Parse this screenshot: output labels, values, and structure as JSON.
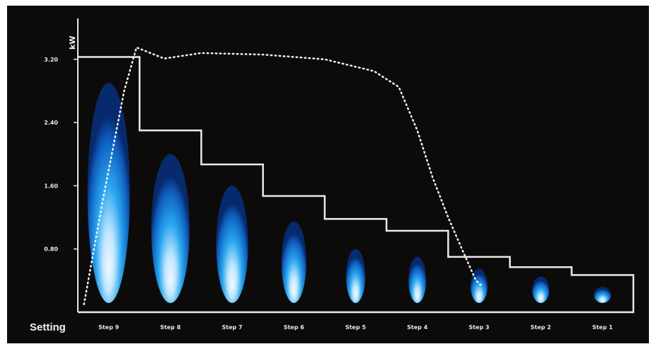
{
  "chart_data": {
    "type": "step-line",
    "title": "",
    "ylabel": "kW",
    "xlabel": "Setting",
    "ylim": [
      0,
      3.7
    ],
    "yticks": [
      {
        "value": 0.8,
        "label": "0.80"
      },
      {
        "value": 1.6,
        "label": "1.60"
      },
      {
        "value": 2.4,
        "label": "2.40"
      },
      {
        "value": 3.2,
        "label": "3.20"
      }
    ],
    "categories": [
      "Step 9",
      "Step 8",
      "Step 7",
      "Step 6",
      "Step 5",
      "Step 4",
      "Step 3",
      "Step 2",
      "Step 1"
    ],
    "series": [
      {
        "style": "solid-step",
        "values": [
          3.23,
          2.3,
          1.87,
          1.47,
          1.18,
          1.03,
          0.7,
          0.57,
          0.47
        ]
      },
      {
        "style": "dotted",
        "points": [
          [
            0.1,
            0.1
          ],
          [
            0.4,
            1.4
          ],
          [
            0.75,
            2.8
          ],
          [
            0.95,
            3.35
          ],
          [
            1.4,
            3.21
          ],
          [
            2.0,
            3.28
          ],
          [
            3.0,
            3.26
          ],
          [
            4.0,
            3.2
          ],
          [
            4.8,
            3.05
          ],
          [
            5.2,
            2.85
          ],
          [
            5.5,
            2.3
          ],
          [
            5.75,
            1.7
          ],
          [
            6.0,
            1.2
          ],
          [
            6.25,
            0.75
          ],
          [
            6.45,
            0.4
          ],
          [
            6.55,
            0.33
          ]
        ]
      }
    ],
    "flame_heights": [
      2.9,
      2.0,
      1.6,
      1.15,
      0.8,
      0.7,
      0.55,
      0.45,
      0.32
    ],
    "colors": {
      "background": "#0d0b09",
      "axis": "#e6e6e6",
      "flame_outer": "#0a3f9c",
      "flame_mid": "#1fa0e8",
      "flame_core": "#e8f6ff"
    },
    "grid": false,
    "legend": "none"
  }
}
